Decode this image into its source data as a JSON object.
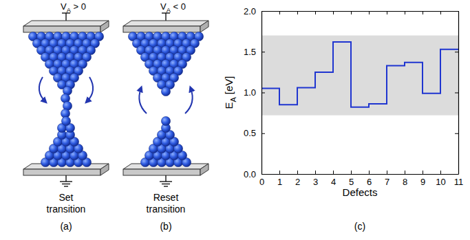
{
  "chart_data": {
    "type": "line",
    "line_style": "step",
    "label": "(c)",
    "x_label": "Defects",
    "y_label": [
      {
        "text": "E"
      },
      {
        "text": "A",
        "sub": true
      },
      {
        "text": " [eV]"
      }
    ],
    "x": [
      0,
      1,
      2,
      3,
      4,
      5,
      6,
      7,
      8,
      9,
      10,
      11
    ],
    "values": [
      1.05,
      0.85,
      1.06,
      1.25,
      1.62,
      0.82,
      0.86,
      1.33,
      1.37,
      0.99,
      1.53,
      1.53
    ],
    "color": "#1f35d0",
    "shaded_range": [
      0.72,
      1.7
    ],
    "xlim": [
      0,
      11
    ],
    "ylim": [
      0,
      2
    ],
    "xticks": [
      0,
      1,
      2,
      3,
      4,
      5,
      6,
      7,
      8,
      9,
      10,
      11
    ],
    "yticks": [
      {
        "value": 0,
        "label": "0.0"
      },
      {
        "value": 0.5,
        "label": "0.5"
      },
      {
        "value": 1,
        "label": "1.0"
      },
      {
        "value": 1.5,
        "label": "1.5"
      },
      {
        "value": 2,
        "label": "2.0"
      }
    ]
  },
  "diagrams": [
    {
      "label": "(a)",
      "caption": "Set transition",
      "state": "set",
      "voltage": [
        {
          "text": "V"
        },
        {
          "text": "A",
          "sub": true
        },
        {
          "text": " > 0"
        }
      ]
    },
    {
      "label": "(b)",
      "caption": "Reset transition",
      "state": "reset",
      "voltage": [
        {
          "text": "V"
        },
        {
          "text": "A",
          "sub": true
        },
        {
          "text": " < 0"
        }
      ]
    }
  ]
}
